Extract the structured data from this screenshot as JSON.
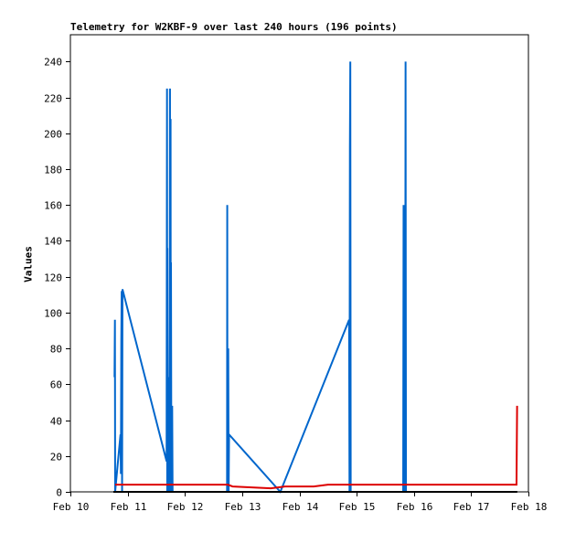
{
  "chart_data": {
    "type": "line",
    "title": "Telemetry for W2KBF-9 over last 240 hours (196 points)",
    "xlabel": "",
    "ylabel": "Values",
    "x_tick_labels": [
      "Feb 10",
      "Feb 11",
      "Feb 12",
      "Feb 13",
      "Feb 14",
      "Feb 15",
      "Feb 16",
      "Feb 17",
      "Feb 18"
    ],
    "y_ticks": [
      0,
      20,
      40,
      60,
      80,
      100,
      120,
      140,
      160,
      180,
      200,
      220,
      240
    ],
    "xlim": [
      "Feb 10",
      "Feb 18"
    ],
    "ylim": [
      0,
      255
    ],
    "grid": false,
    "series": [
      {
        "color": "#0066cc",
        "points": [
          [
            "Feb 10 18:30",
            64
          ],
          [
            "Feb 10 18:35",
            80
          ],
          [
            "Feb 10 18:40",
            96
          ],
          [
            "Feb 10 18:45",
            0
          ],
          [
            "Feb 10 21:00",
            32
          ],
          [
            "Feb 10 21:10",
            10
          ],
          [
            "Feb 10 21:20",
            84
          ],
          [
            "Feb 10 21:30",
            112
          ],
          [
            "Feb 10 21:40",
            0
          ],
          [
            "Feb 10 21:50",
            113
          ],
          [
            "Feb 11 16:20",
            17
          ],
          [
            "Feb 11 16:30",
            225
          ],
          [
            "Feb 11 16:35",
            0
          ],
          [
            "Feb 11 16:40",
            136
          ],
          [
            "Feb 11 16:50",
            0
          ],
          [
            "Feb 11 17:00",
            32
          ],
          [
            "Feb 11 17:10",
            0
          ],
          [
            "Feb 11 17:20",
            64
          ],
          [
            "Feb 11 17:30",
            0
          ],
          [
            "Feb 11 17:40",
            96
          ],
          [
            "Feb 11 17:45",
            225
          ],
          [
            "Feb 11 17:50",
            0
          ],
          [
            "Feb 11 18:00",
            208
          ],
          [
            "Feb 11 18:05",
            0
          ],
          [
            "Feb 11 18:10",
            128
          ],
          [
            "Feb 11 18:20",
            0
          ],
          [
            "Feb 11 18:40",
            48
          ],
          [
            "Feb 11 18:50",
            0
          ],
          [
            "Feb 12 17:40",
            0
          ],
          [
            "Feb 12 17:45",
            160
          ],
          [
            "Feb 12 17:50",
            0
          ],
          [
            "Feb 12 18:10",
            80
          ],
          [
            "Feb 12 18:20",
            0
          ],
          [
            "Feb 12 18:30",
            32
          ],
          [
            "Feb 13 16:00",
            0
          ],
          [
            "Feb 14 20:50",
            96
          ],
          [
            "Feb 14 21:00",
            0
          ],
          [
            "Feb 14 21:10",
            192
          ],
          [
            "Feb 14 21:20",
            240
          ],
          [
            "Feb 14 21:30",
            0
          ],
          [
            "Feb 15 19:30",
            0
          ],
          [
            "Feb 15 19:40",
            160
          ],
          [
            "Feb 15 19:50",
            0
          ],
          [
            "Feb 15 20:00",
            16
          ],
          [
            "Feb 15 20:10",
            0
          ],
          [
            "Feb 15 20:20",
            32
          ],
          [
            "Feb 15 20:30",
            240
          ],
          [
            "Feb 15 20:40",
            0
          ]
        ]
      },
      {
        "color": "#dd0000",
        "points": [
          [
            "Feb 10 18:45",
            4
          ],
          [
            "Feb 12 18:00",
            4
          ],
          [
            "Feb 12 20:00",
            3
          ],
          [
            "Feb 13 12:00",
            2
          ],
          [
            "Feb 13 18:00",
            3
          ],
          [
            "Feb 14 06:00",
            3
          ],
          [
            "Feb 14 12:00",
            4
          ],
          [
            "Feb 17 19:00",
            4
          ],
          [
            "Feb 17 19:15",
            48
          ]
        ]
      },
      {
        "color": "#000000",
        "points": [
          [
            "Feb 10 18:00",
            0
          ],
          [
            "Feb 17 19:20",
            0
          ]
        ]
      }
    ]
  }
}
